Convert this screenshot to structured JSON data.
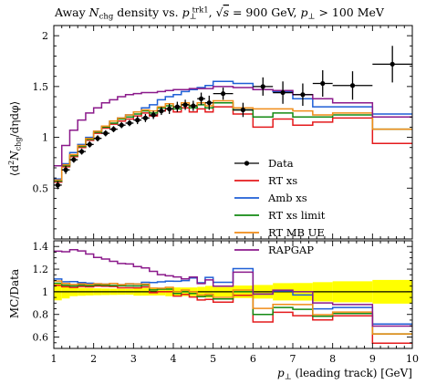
{
  "chart_data": [
    {
      "type": "line",
      "panel": "main",
      "title_parts": {
        "t1": "Away ",
        "t2": "N",
        "t3": "chg",
        "t4": " density vs. ",
        "t5": "p",
        "t6": "⊥",
        "t7": "trk1",
        "t8": ", √",
        "t9": "s",
        "t10": " = 900 GeV, ",
        "t11": "p",
        "t12": "⊥",
        "t13": " > 100 MeV"
      },
      "ylabel": "⟨d²N_chg/dηdφ⟩",
      "ylabel_parts": {
        "a": "⟨d",
        "b": "2",
        "c": "N",
        "d": "chg",
        "e": "/dηdφ⟩"
      },
      "xlim": [
        1,
        10
      ],
      "ylim": [
        0,
        2.1
      ],
      "yticks": [
        "0.5",
        "1",
        "1.5",
        "2"
      ],
      "legend_position": "center-right",
      "data": {
        "name": "Data",
        "x": [
          1.1,
          1.3,
          1.5,
          1.7,
          1.9,
          2.1,
          2.3,
          2.5,
          2.7,
          2.9,
          3.1,
          3.3,
          3.5,
          3.7,
          3.9,
          4.1,
          4.3,
          4.5,
          4.7,
          4.9,
          5.25,
          5.75,
          6.25,
          6.75,
          7.25,
          7.75,
          8.5,
          9.5
        ],
        "xerr": [
          0.1,
          0.1,
          0.1,
          0.1,
          0.1,
          0.1,
          0.1,
          0.1,
          0.1,
          0.1,
          0.1,
          0.1,
          0.1,
          0.1,
          0.1,
          0.1,
          0.1,
          0.1,
          0.1,
          0.1,
          0.25,
          0.25,
          0.25,
          0.25,
          0.25,
          0.25,
          0.5,
          0.5
        ],
        "y": [
          0.53,
          0.68,
          0.78,
          0.86,
          0.93,
          0.99,
          1.04,
          1.08,
          1.12,
          1.14,
          1.17,
          1.19,
          1.22,
          1.26,
          1.28,
          1.3,
          1.32,
          1.31,
          1.38,
          1.34,
          1.43,
          1.27,
          1.5,
          1.44,
          1.42,
          1.53,
          1.51,
          1.72
        ],
        "yerr": [
          0.04,
          0.04,
          0.03,
          0.03,
          0.03,
          0.03,
          0.03,
          0.03,
          0.03,
          0.03,
          0.04,
          0.04,
          0.04,
          0.04,
          0.05,
          0.05,
          0.05,
          0.05,
          0.06,
          0.07,
          0.06,
          0.07,
          0.09,
          0.11,
          0.11,
          0.13,
          0.14,
          0.18
        ]
      },
      "bin_edges": [
        1,
        1.2,
        1.4,
        1.6,
        1.8,
        2.0,
        2.2,
        2.4,
        2.6,
        2.8,
        3.0,
        3.2,
        3.4,
        3.6,
        3.8,
        4.0,
        4.2,
        4.4,
        4.6,
        4.8,
        5.0,
        5.5,
        6.0,
        6.5,
        7.0,
        7.5,
        8.0,
        9.0,
        10.0
      ],
      "series": [
        {
          "name": "RT xs",
          "color": "#e41a1c",
          "values": [
            0.56,
            0.71,
            0.81,
            0.9,
            0.97,
            1.04,
            1.09,
            1.13,
            1.16,
            1.18,
            1.21,
            1.24,
            1.21,
            1.26,
            1.28,
            1.25,
            1.29,
            1.25,
            1.28,
            1.25,
            1.3,
            1.23,
            1.1,
            1.18,
            1.12,
            1.15,
            1.19,
            0.94
          ]
        },
        {
          "name": "Amb xs",
          "color": "#1f5fd6",
          "values": [
            0.59,
            0.74,
            0.85,
            0.93,
            1.0,
            1.06,
            1.11,
            1.16,
            1.19,
            1.22,
            1.25,
            1.29,
            1.32,
            1.37,
            1.4,
            1.42,
            1.45,
            1.47,
            1.49,
            1.51,
            1.55,
            1.53,
            1.47,
            1.45,
            1.38,
            1.3,
            1.3,
            1.23
          ]
        },
        {
          "name": "RT xs limit",
          "color": "#138a13",
          "values": [
            0.57,
            0.72,
            0.82,
            0.91,
            0.98,
            1.05,
            1.1,
            1.14,
            1.18,
            1.2,
            1.23,
            1.26,
            1.24,
            1.29,
            1.31,
            1.28,
            1.32,
            1.29,
            1.32,
            1.29,
            1.34,
            1.27,
            1.2,
            1.24,
            1.2,
            1.2,
            1.22,
            1.08
          ]
        },
        {
          "name": "RT MB UE",
          "color": "#f08c18",
          "values": [
            0.58,
            0.73,
            0.83,
            0.92,
            0.99,
            1.06,
            1.11,
            1.16,
            1.19,
            1.22,
            1.25,
            1.27,
            1.26,
            1.3,
            1.33,
            1.3,
            1.34,
            1.31,
            1.34,
            1.31,
            1.36,
            1.29,
            1.28,
            1.28,
            1.26,
            1.22,
            1.24,
            1.08
          ]
        },
        {
          "name": "RAPGAP",
          "color": "#8b1a8b",
          "values": [
            0.72,
            0.92,
            1.07,
            1.17,
            1.24,
            1.29,
            1.34,
            1.37,
            1.4,
            1.42,
            1.43,
            1.44,
            1.44,
            1.45,
            1.46,
            1.47,
            1.47,
            1.48,
            1.48,
            1.48,
            1.5,
            1.49,
            1.47,
            1.46,
            1.42,
            1.38,
            1.34,
            1.2
          ]
        }
      ]
    },
    {
      "type": "line",
      "panel": "ratio",
      "ylabel": "MC/Data",
      "xlabel": "p⊥ (leading track) [GeV]",
      "xlabel_parts": {
        "p": "p",
        "sub": "⊥",
        "rest": " (leading track) [GeV]"
      },
      "xlim": [
        1,
        10
      ],
      "ylim": [
        0.5,
        1.45
      ],
      "yticks": [
        "0.6",
        "0.8",
        "1",
        "1.2",
        "1.4"
      ],
      "xticks": [
        "1",
        "2",
        "3",
        "4",
        "5",
        "6",
        "7",
        "8",
        "9",
        "10"
      ],
      "band_color": "#ffff00",
      "reference_line": 1
    }
  ]
}
